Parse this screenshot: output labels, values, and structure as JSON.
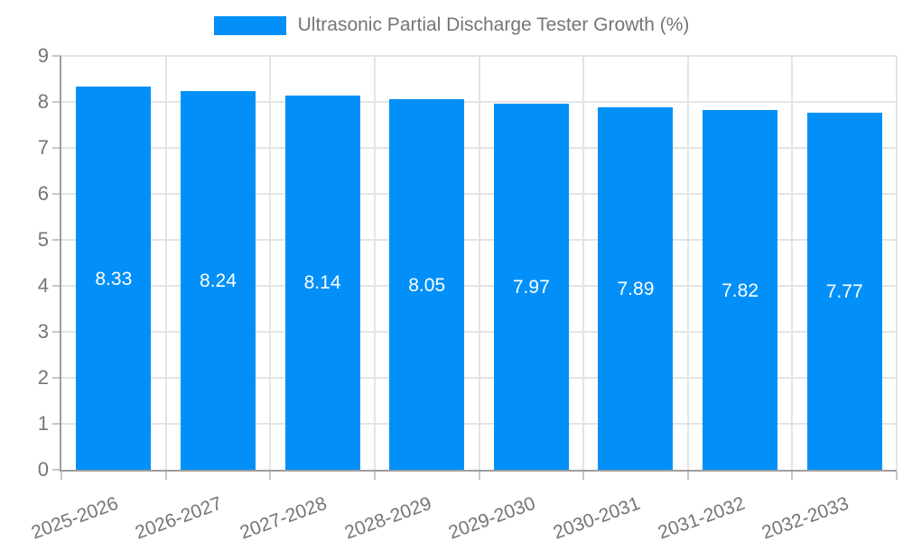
{
  "chart_data": {
    "type": "bar",
    "title": "",
    "legend": {
      "label": "Ultrasonic Partial Discharge Tester Growth (%)",
      "position": "top"
    },
    "categories": [
      "2025-2026",
      "2026-2027",
      "2027-2028",
      "2028-2029",
      "2029-2030",
      "2030-2031",
      "2031-2032",
      "2032-2033"
    ],
    "values": [
      8.33,
      8.24,
      8.14,
      8.05,
      7.97,
      7.89,
      7.82,
      7.77
    ],
    "value_labels": [
      "8.33",
      "8.24",
      "8.14",
      "8.05",
      "7.97",
      "7.89",
      "7.82",
      "7.77"
    ],
    "xlabel": "",
    "ylabel": "",
    "ylim": [
      0,
      9
    ],
    "yticks": [
      0,
      1,
      2,
      3,
      4,
      5,
      6,
      7,
      8,
      9
    ],
    "grid": true,
    "colors": {
      "bar": "#0290f8",
      "grid": "#e4e4e4",
      "axis": "#9e9e9e",
      "tick_mark": "#c6c6c6",
      "tick_text": "#757575",
      "bar_label_text": "#ffffff",
      "legend_text": "#757575"
    }
  }
}
